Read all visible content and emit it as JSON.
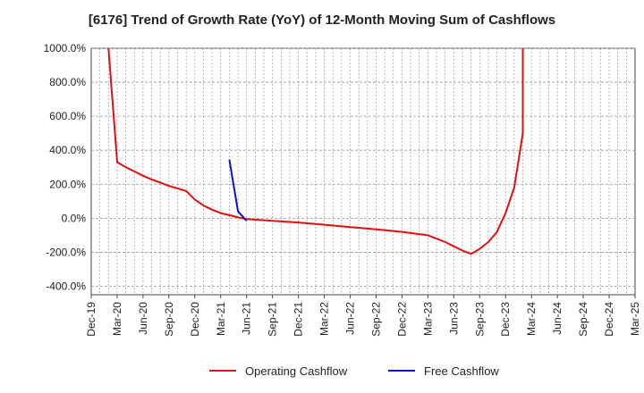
{
  "chart_data": {
    "type": "line",
    "title": "[6176]  Trend of Growth Rate (YoY) of 12-Month Moving Sum of Cashflows",
    "xlabel": "",
    "ylabel": "",
    "ylim": [
      -450,
      1000
    ],
    "y_ticks": [
      1000,
      800,
      600,
      400,
      200,
      0,
      -200,
      -400
    ],
    "y_tick_labels": [
      "1000.0%",
      "800.0%",
      "600.0%",
      "400.0%",
      "200.0%",
      "0.0%",
      "-200.0%",
      "-400.0%"
    ],
    "x_tick_labels": [
      "Dec-19",
      "Mar-20",
      "Jun-20",
      "Sep-20",
      "Dec-20",
      "Mar-21",
      "Jun-21",
      "Sep-21",
      "Dec-21",
      "Mar-22",
      "Jun-22",
      "Sep-22",
      "Dec-22",
      "Mar-23",
      "Jun-23",
      "Sep-23",
      "Dec-23",
      "Mar-24",
      "Jun-24",
      "Sep-24",
      "Dec-24",
      "Mar-25"
    ],
    "grid": true,
    "legend_position": "bottom",
    "series": [
      {
        "name": "Operating Cashflow",
        "color": "#e01010",
        "points": [
          [
            "Feb-20",
            1000
          ],
          [
            "Mar-20",
            330
          ],
          [
            "Apr-20",
            300
          ],
          [
            "May-20",
            275
          ],
          [
            "Jun-20",
            250
          ],
          [
            "Jul-20",
            228
          ],
          [
            "Aug-20",
            210
          ],
          [
            "Sep-20",
            190
          ],
          [
            "Oct-20",
            175
          ],
          [
            "Nov-20",
            160
          ],
          [
            "Dec-20",
            110
          ],
          [
            "Jan-21",
            75
          ],
          [
            "Feb-21",
            50
          ],
          [
            "Mar-21",
            30
          ],
          [
            "Apr-21",
            18
          ],
          [
            "May-21",
            5
          ],
          [
            "Jun-21",
            -5
          ],
          [
            "Sep-21",
            -15
          ],
          [
            "Dec-21",
            -25
          ],
          [
            "Mar-22",
            -38
          ],
          [
            "Jun-22",
            -52
          ],
          [
            "Sep-22",
            -65
          ],
          [
            "Dec-22",
            -80
          ],
          [
            "Mar-23",
            -100
          ],
          [
            "Apr-23",
            -120
          ],
          [
            "May-23",
            -140
          ],
          [
            "Jun-23",
            -165
          ],
          [
            "Jul-23",
            -190
          ],
          [
            "Aug-23",
            -210
          ],
          [
            "Sep-23",
            -180
          ],
          [
            "Oct-23",
            -140
          ],
          [
            "Nov-23",
            -80
          ],
          [
            "Dec-23",
            30
          ],
          [
            "Jan-24",
            180
          ],
          [
            "Feb-24",
            500
          ],
          [
            "Feb-24",
            1000
          ]
        ]
      },
      {
        "name": "Free Cashflow",
        "color": "#1010d0",
        "points": [
          [
            "Apr-21",
            345
          ],
          [
            "May-21",
            40
          ],
          [
            "Jun-21",
            -15
          ]
        ]
      }
    ]
  },
  "legend": {
    "items": [
      {
        "label": "Operating Cashflow",
        "color": "#e01010"
      },
      {
        "label": "Free Cashflow",
        "color": "#1010d0"
      }
    ]
  }
}
